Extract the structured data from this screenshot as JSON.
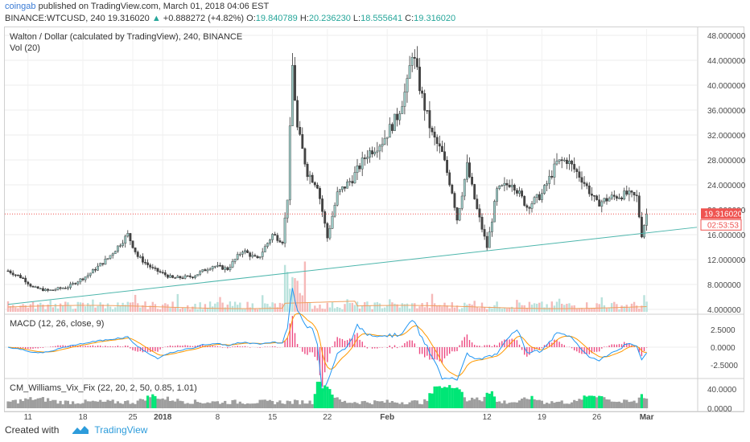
{
  "header": {
    "author": "coingab",
    "published": "published on TradingView.com, March 01, 2018 04:06 EST",
    "symbol": "BINANCE:WTCUSD, 240",
    "last": "19.316020",
    "change": "+0.888272 (+4.82%)",
    "o_label": "O:",
    "o": "19.840789",
    "h_label": "H:",
    "h": "20.236230",
    "l_label": "L:",
    "l": "18.555641",
    "c_label": "C:",
    "c": "19.316020"
  },
  "price_panel": {
    "title": "Walton / Dollar (calculated by TradingView), 240, BINANCE",
    "vol_label": "Vol (20)",
    "price_tag": "19.316020",
    "countdown_tag": "02:53:53"
  },
  "macd_panel": {
    "title": "MACD (12, 26, close, 9)"
  },
  "vix_panel": {
    "title": "CM_Williams_Vix_Fix (22, 20, 2, 50, 0.85, 1.01)"
  },
  "footer": {
    "created_with": "Created with",
    "brand": "TradingView"
  },
  "colors": {
    "up": "#26a69a",
    "down": "#ef5350",
    "macd": "#2196f3",
    "signal": "#ff9800",
    "hist": "#e91e63",
    "vix_gray": "#9e9e9e",
    "vix_green": "#00e676",
    "trendline": "#4db6ac",
    "price_line": "#ef5350"
  },
  "chart_data": [
    {
      "type": "candlestick",
      "ylim": [
        4,
        48
      ],
      "y_ticks": [
        "48.000000",
        "44.000000",
        "40.000000",
        "36.000000",
        "32.000000",
        "28.000000",
        "24.000000",
        "20.000000",
        "16.000000",
        "12.000000",
        "8.000000",
        "4.000000"
      ],
      "x_ticks": [
        "11",
        "18",
        "25",
        "2018",
        "8",
        "15",
        "22",
        "Feb",
        "12",
        "19",
        "26",
        "Mar"
      ],
      "approx_close_path": [
        {
          "d": 0,
          "v": 10.2
        },
        {
          "d": 3,
          "v": 9.0
        },
        {
          "d": 5,
          "v": 7.5
        },
        {
          "d": 8,
          "v": 7.0
        },
        {
          "d": 12,
          "v": 7.6
        },
        {
          "d": 16,
          "v": 9.5
        },
        {
          "d": 20,
          "v": 12.2
        },
        {
          "d": 24,
          "v": 16.0
        },
        {
          "d": 26,
          "v": 12.5
        },
        {
          "d": 29,
          "v": 10.5
        },
        {
          "d": 33,
          "v": 9.0
        },
        {
          "d": 37,
          "v": 9.3
        },
        {
          "d": 41,
          "v": 11.0
        },
        {
          "d": 44,
          "v": 10.5
        },
        {
          "d": 47,
          "v": 13.5
        },
        {
          "d": 50,
          "v": 12.0
        },
        {
          "d": 53,
          "v": 16.0
        },
        {
          "d": 55,
          "v": 15.0
        },
        {
          "d": 56,
          "v": 22.0
        },
        {
          "d": 57,
          "v": 43.0
        },
        {
          "d": 58,
          "v": 33.0
        },
        {
          "d": 60,
          "v": 26.0
        },
        {
          "d": 62,
          "v": 24.0
        },
        {
          "d": 64,
          "v": 15.5
        },
        {
          "d": 66,
          "v": 22.5
        },
        {
          "d": 69,
          "v": 25.0
        },
        {
          "d": 72,
          "v": 29.0
        },
        {
          "d": 75,
          "v": 31.0
        },
        {
          "d": 78,
          "v": 35.0
        },
        {
          "d": 80,
          "v": 40.0
        },
        {
          "d": 81,
          "v": 45.5
        },
        {
          "d": 83,
          "v": 38.0
        },
        {
          "d": 85,
          "v": 32.0
        },
        {
          "d": 87,
          "v": 29.0
        },
        {
          "d": 89,
          "v": 23.0
        },
        {
          "d": 90,
          "v": 18.5
        },
        {
          "d": 92,
          "v": 27.0
        },
        {
          "d": 94,
          "v": 20.0
        },
        {
          "d": 96,
          "v": 14.0
        },
        {
          "d": 98,
          "v": 23.0
        },
        {
          "d": 101,
          "v": 24.5
        },
        {
          "d": 104,
          "v": 20.5
        },
        {
          "d": 107,
          "v": 22.5
        },
        {
          "d": 110,
          "v": 27.5
        },
        {
          "d": 112,
          "v": 28.0
        },
        {
          "d": 115,
          "v": 25.0
        },
        {
          "d": 118,
          "v": 21.0
        },
        {
          "d": 121,
          "v": 22.0
        },
        {
          "d": 124,
          "v": 22.5
        },
        {
          "d": 126,
          "v": 22.0
        },
        {
          "d": 127,
          "v": 16.0
        },
        {
          "d": 128,
          "v": 19.3
        }
      ],
      "trendline": {
        "from": {
          "d": 0,
          "v": 4.8
        },
        "to": {
          "d": 136,
          "v": 17.0
        }
      },
      "last_price": 19.31602
    },
    {
      "type": "line",
      "name": "MACD",
      "ylim": [
        -3.5,
        3.5
      ],
      "y_ticks": [
        "2.5000",
        "0.0000",
        "-2.5000"
      ]
    },
    {
      "type": "area",
      "name": "CM_Williams_Vix_Fix",
      "y_ticks": [
        "40.0000",
        "0.0000"
      ]
    }
  ]
}
